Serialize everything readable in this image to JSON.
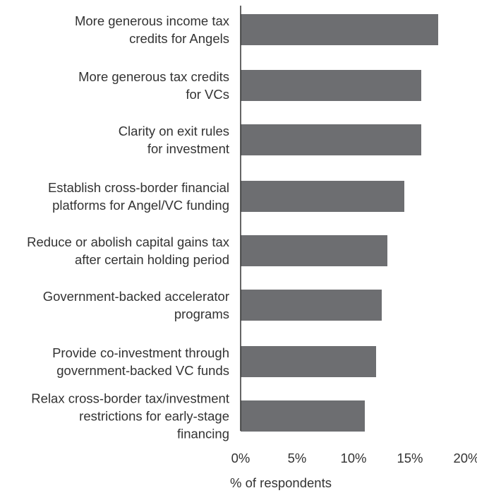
{
  "chart_data": {
    "type": "bar",
    "orientation": "horizontal",
    "categories": [
      [
        "More generous income tax",
        "credits for Angels"
      ],
      [
        "More generous tax credits",
        "for VCs"
      ],
      [
        "Clarity on exit rules",
        "for investment"
      ],
      [
        "Establish cross-border financial",
        "platforms for Angel/VC funding"
      ],
      [
        "Reduce or abolish capital gains tax",
        "after certain holding period"
      ],
      [
        "Government-backed accelerator",
        "programs"
      ],
      [
        "Provide co-investment through",
        "government-backed VC funds"
      ],
      [
        "Relax cross-border tax/investment",
        "restrictions for early-stage",
        "financing"
      ]
    ],
    "values": [
      17.5,
      16.0,
      16.0,
      14.5,
      13.0,
      12.5,
      12.0,
      11.0
    ],
    "xlabel": "% of respondents",
    "xticks": [
      "0%",
      "5%",
      "10%",
      "15%",
      "20%"
    ],
    "xlim": [
      0,
      20
    ],
    "bar_color": "#6d6e71",
    "axis_color": "#333333",
    "grid": false
  }
}
